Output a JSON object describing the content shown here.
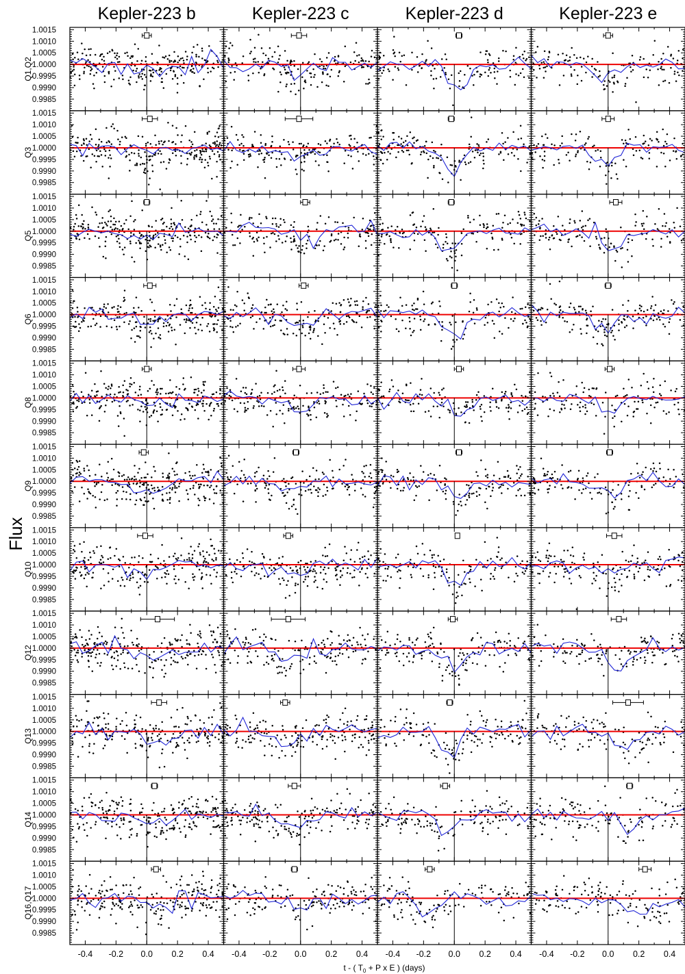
{
  "figure": {
    "ylabel": "Flux",
    "xlabel_prefix": "t - ( T",
    "xlabel_sub": "0",
    "xlabel_suffix": " + P x E )  (days)"
  },
  "chart_data": {
    "type": "scatter",
    "planets": [
      "Kepler-223 b",
      "Kepler-223 c",
      "Kepler-223 d",
      "Kepler-223 e"
    ],
    "quarters": [
      "Q1,Q2",
      "Q3",
      "Q5",
      "Q6",
      "Q8",
      "Q9",
      "Q10",
      "Q12",
      "Q13",
      "Q14",
      "Q16,Q17"
    ],
    "xlim": [
      -0.5,
      0.5
    ],
    "ylim": [
      0.998,
      1.0016
    ],
    "x_ticks": [
      "-0.4",
      "-0.2",
      "0.0",
      "0.2",
      "0.4"
    ],
    "y_ticks": [
      "1.0015",
      "1.0010",
      "1.0005",
      "1.0000",
      "0.9995",
      "0.9990",
      "0.9985"
    ],
    "reference_flux": 1.0,
    "reference_line_color": "#ee0000",
    "binned_line_color": "#1f24d6",
    "points_color": "#000000",
    "transit_depths": [
      0.00035,
      0.00045,
      0.0009,
      0.0007
    ],
    "transit_half_widths": [
      0.17,
      0.15,
      0.11,
      0.12
    ],
    "timing_offsets": [
      [
        0.0,
        -0.01,
        0.03,
        0.0
      ],
      [
        0.02,
        -0.01,
        -0.02,
        0.0
      ],
      [
        0.0,
        0.03,
        -0.02,
        0.05
      ],
      [
        0.02,
        0.02,
        0.0,
        0.0
      ],
      [
        0.0,
        -0.01,
        0.03,
        0.01
      ],
      [
        -0.02,
        -0.03,
        0.03,
        0.01
      ],
      [
        -0.01,
        -0.08,
        0.02,
        0.04
      ],
      [
        0.07,
        -0.08,
        -0.01,
        0.07
      ],
      [
        0.08,
        -0.1,
        -0.03,
        0.13
      ],
      [
        0.05,
        -0.04,
        -0.06,
        0.14
      ],
      [
        0.06,
        -0.04,
        -0.16,
        0.24
      ]
    ],
    "timing_error_halfwidths": [
      [
        0.03,
        0.05,
        0.02,
        0.03
      ],
      [
        0.05,
        0.09,
        0.02,
        0.04
      ],
      [
        0.02,
        0.03,
        0.02,
        0.04
      ],
      [
        0.04,
        0.03,
        0.02,
        0.02
      ],
      [
        0.03,
        0.04,
        0.03,
        0.03
      ],
      [
        0.03,
        0.02,
        0.02,
        0.02
      ],
      [
        0.05,
        0.03,
        0.01,
        0.05
      ],
      [
        0.11,
        0.11,
        0.03,
        0.05
      ],
      [
        0.05,
        0.03,
        0.02,
        0.1
      ],
      [
        0.02,
        0.04,
        0.03,
        0.02
      ],
      [
        0.03,
        0.02,
        0.03,
        0.04
      ]
    ],
    "grid": false
  }
}
